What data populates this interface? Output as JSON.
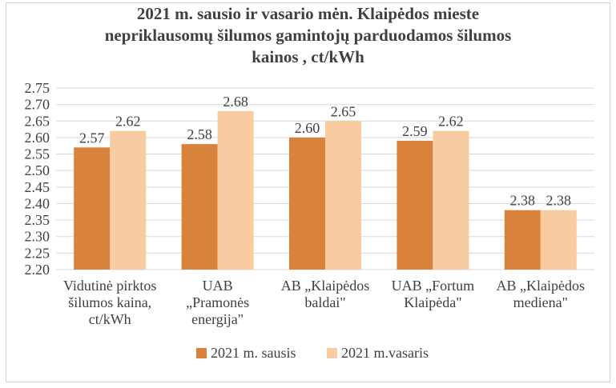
{
  "chart_data": {
    "type": "bar",
    "title": "2021 m.  sausio ir vasario mėn. Klaipėdos mieste\nnepriklausomų šilumos gamintojų parduodamos šilumos\nkainos , ct/kWh",
    "categories": [
      [
        "Vidutinė pirktos",
        "šilumos kaina,",
        "ct/kWh"
      ],
      [
        "UAB",
        "„Pramonės",
        "energija\""
      ],
      [
        "AB „Klaipėdos",
        "baldai\""
      ],
      [
        "UAB „Fortum",
        "Klaipėda\""
      ],
      [
        "AB „Klaipėdos",
        "mediena\""
      ]
    ],
    "series": [
      {
        "name": "2021 m. sausis",
        "values": [
          2.57,
          2.58,
          2.6,
          2.59,
          2.38
        ],
        "labels": [
          "2.57",
          "2.58",
          "2.60",
          "2.59",
          "2.38"
        ],
        "color": "#D9823B"
      },
      {
        "name": "2021 m.vasaris",
        "values": [
          2.62,
          2.68,
          2.65,
          2.62,
          2.38
        ],
        "labels": [
          "2.62",
          "2.68",
          "2.65",
          "2.62",
          "2.38"
        ],
        "color": "#F8CBA0"
      }
    ],
    "ylim": [
      2.2,
      2.75
    ],
    "yticks": [
      "2.20",
      "2.25",
      "2.30",
      "2.35",
      "2.40",
      "2.45",
      "2.50",
      "2.55",
      "2.60",
      "2.65",
      "2.70",
      "2.75"
    ],
    "grid": true,
    "legend": "bottom",
    "gridColor": "#d9d9d9"
  }
}
